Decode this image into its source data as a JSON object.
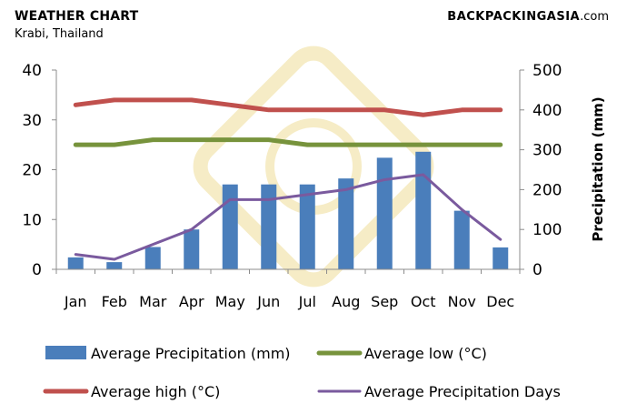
{
  "header": {
    "title": "WEATHER CHART",
    "subtitle": "Krabi, Thailand",
    "brand_main": "BACKPACKING",
    "brand_accent": "ASIA",
    "brand_domain": ".com"
  },
  "colors": {
    "bar": "#4a7ebb",
    "high": "#c0504d",
    "low": "#77933c",
    "days": "#7a5a9e",
    "watermark": "#f6ecc6",
    "axis": "#8c8c8c"
  },
  "chart_data": {
    "type": "bar",
    "categories": [
      "Jan",
      "Feb",
      "Mar",
      "Apr",
      "May",
      "Jun",
      "Jul",
      "Aug",
      "Sep",
      "Oct",
      "Nov",
      "Dec"
    ],
    "ylabel": "",
    "y2label": "Precipitation (mm)",
    "ylim": [
      0,
      40
    ],
    "y2lim": [
      0,
      500
    ],
    "yticks": [
      "0",
      "10",
      "20",
      "30",
      "40"
    ],
    "y2ticks": [
      "0",
      "100",
      "200",
      "300",
      "400",
      "500"
    ],
    "series": [
      {
        "name": "Average Precipitation (mm)",
        "type": "bar",
        "axis": "right",
        "values": [
          30,
          18,
          56,
          100,
          213,
          213,
          213,
          228,
          280,
          295,
          147,
          55
        ]
      },
      {
        "name": "Average low (°C)",
        "type": "line",
        "axis": "left",
        "values": [
          25,
          25,
          26,
          26,
          26,
          26,
          25,
          25,
          25,
          25,
          25,
          25
        ]
      },
      {
        "name": "Average high (°C)",
        "type": "line",
        "axis": "left",
        "values": [
          33,
          34,
          34,
          34,
          33,
          32,
          32,
          32,
          32,
          31,
          32,
          32
        ]
      },
      {
        "name": "Average Precipitation Days",
        "type": "line",
        "axis": "left",
        "values": [
          3,
          2,
          5,
          8,
          14,
          14,
          15,
          16,
          18,
          19,
          12,
          6
        ]
      }
    ],
    "legend_position": "bottom"
  }
}
